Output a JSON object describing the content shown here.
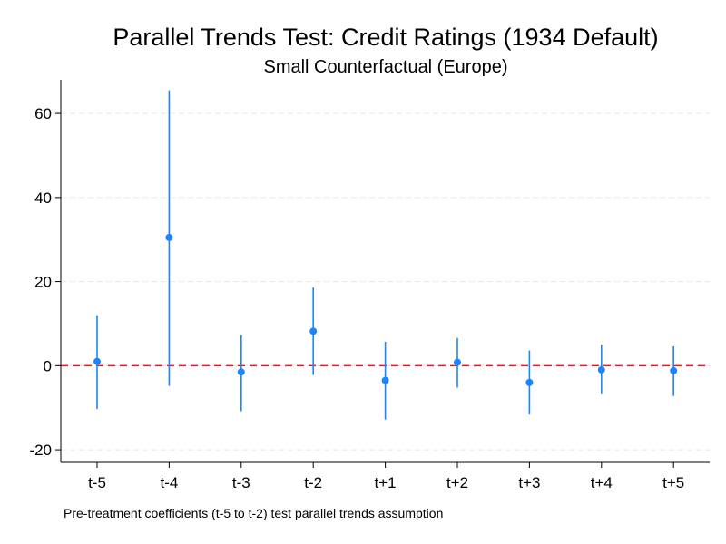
{
  "chart_data": {
    "type": "scatter",
    "title": "Parallel Trends Test: Credit Ratings (1934 Default)",
    "subtitle": "Small Counterfactual (Europe)",
    "note": "Pre-treatment coefficients (t-5 to t-2) test parallel trends assumption",
    "xlabel": "",
    "ylabel": "",
    "categories": [
      "t-5",
      "t-4",
      "t-3",
      "t-2",
      "t+1",
      "t+2",
      "t+3",
      "t+4",
      "t+5"
    ],
    "values": [
      1.0,
      30.5,
      -1.5,
      8.2,
      -3.5,
      0.8,
      -4.0,
      -1.0,
      -1.2
    ],
    "ci_lower": [
      -10.3,
      -4.8,
      -10.8,
      -2.2,
      -12.8,
      -5.2,
      -11.6,
      -6.8,
      -7.2
    ],
    "ci_upper": [
      12.0,
      65.5,
      7.3,
      18.6,
      5.7,
      6.6,
      3.6,
      5.0,
      4.6
    ],
    "yticks": [
      -20,
      0,
      20,
      40,
      60
    ],
    "ylim": [
      -23,
      68
    ],
    "reference_line": 0,
    "grid": true,
    "colors": {
      "point": "#1a85ff",
      "reference_line": "#e8191f",
      "grid": "#e6e6e6",
      "axis": "#000000"
    }
  }
}
